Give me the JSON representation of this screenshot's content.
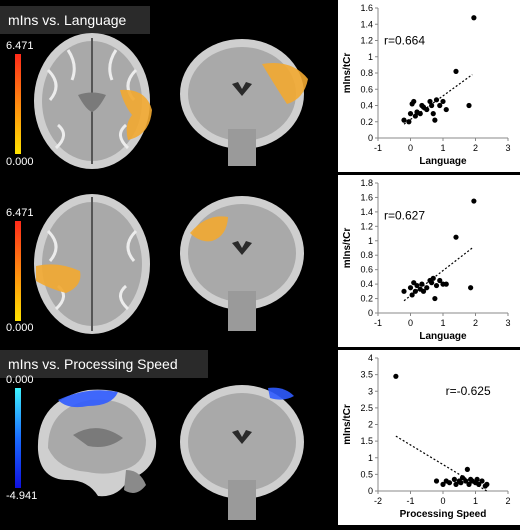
{
  "panels": [
    {
      "title": "mIns vs. Language",
      "colorbar": {
        "max": "6.471",
        "min": "0.000",
        "top_color": "#ff2a1a",
        "bottom_color": "#ffe300"
      },
      "chart_data": {
        "type": "scatter",
        "annotation": "r=0.664",
        "xlabel": "Language",
        "ylabel": "mIns/tCr",
        "xlim": [
          -1,
          3
        ],
        "ylim": [
          0,
          1.6
        ],
        "xticks": [
          "-1",
          "0",
          "1",
          "2",
          "3"
        ],
        "yticks": [
          "0",
          "0.2",
          "0.4",
          "0.6",
          "0.8",
          "1",
          "1.2",
          "1.4",
          "1.6"
        ],
        "points": [
          [
            -0.2,
            0.22
          ],
          [
            -0.05,
            0.2
          ],
          [
            0.0,
            0.3
          ],
          [
            0.05,
            0.42
          ],
          [
            0.1,
            0.45
          ],
          [
            0.15,
            0.27
          ],
          [
            0.2,
            0.32
          ],
          [
            0.3,
            0.3
          ],
          [
            0.35,
            0.4
          ],
          [
            0.4,
            0.38
          ],
          [
            0.5,
            0.35
          ],
          [
            0.6,
            0.45
          ],
          [
            0.65,
            0.4
          ],
          [
            0.7,
            0.3
          ],
          [
            0.75,
            0.22
          ],
          [
            0.8,
            0.47
          ],
          [
            0.9,
            0.4
          ],
          [
            1.0,
            0.45
          ],
          [
            1.1,
            0.35
          ],
          [
            1.4,
            0.82
          ],
          [
            1.8,
            0.4
          ],
          [
            1.95,
            1.48
          ]
        ],
        "trend": [
          [
            -0.2,
            0.17
          ],
          [
            1.9,
            0.78
          ]
        ]
      }
    },
    {
      "title": "",
      "colorbar": {
        "max": "6.471",
        "min": "0.000",
        "top_color": "#ff2a1a",
        "bottom_color": "#ffe300"
      },
      "chart_data": {
        "type": "scatter",
        "annotation": "r=0.627",
        "xlabel": "Language",
        "ylabel": "mIns/tCr",
        "xlim": [
          -1,
          3
        ],
        "ylim": [
          0,
          1.8
        ],
        "xticks": [
          "-1",
          "0",
          "1",
          "2",
          "3"
        ],
        "yticks": [
          "0",
          "0.2",
          "0.4",
          "0.6",
          "0.8",
          "1",
          "1.2",
          "1.4",
          "1.6",
          "1.8"
        ],
        "points": [
          [
            -0.2,
            0.3
          ],
          [
            0.0,
            0.35
          ],
          [
            0.05,
            0.25
          ],
          [
            0.1,
            0.42
          ],
          [
            0.15,
            0.3
          ],
          [
            0.2,
            0.38
          ],
          [
            0.3,
            0.33
          ],
          [
            0.35,
            0.4
          ],
          [
            0.4,
            0.3
          ],
          [
            0.5,
            0.35
          ],
          [
            0.6,
            0.45
          ],
          [
            0.65,
            0.42
          ],
          [
            0.7,
            0.48
          ],
          [
            0.75,
            0.2
          ],
          [
            0.8,
            0.38
          ],
          [
            0.9,
            0.45
          ],
          [
            1.0,
            0.4
          ],
          [
            1.1,
            0.4
          ],
          [
            1.4,
            1.05
          ],
          [
            1.85,
            0.35
          ],
          [
            1.95,
            1.55
          ]
        ],
        "trend": [
          [
            -0.2,
            0.17
          ],
          [
            1.9,
            0.9
          ]
        ]
      }
    },
    {
      "title": "mIns vs. Processing Speed",
      "colorbar": {
        "max": "0.000",
        "min": "-4.941",
        "top_color": "#3ff4ff",
        "bottom_color": "#1010e0"
      },
      "chart_data": {
        "type": "scatter",
        "annotation": "r=-0.625",
        "xlabel": "Processing Speed",
        "ylabel": "mIns/tCr",
        "xlim": [
          -2,
          2
        ],
        "ylim": [
          0,
          4
        ],
        "xticks": [
          "-2",
          "-1",
          "0",
          "1",
          "2"
        ],
        "yticks": [
          "0",
          "0.5",
          "1",
          "1.5",
          "2",
          "2.5",
          "3",
          "3.5",
          "4"
        ],
        "points": [
          [
            -1.45,
            3.45
          ],
          [
            -0.2,
            0.3
          ],
          [
            0.0,
            0.2
          ],
          [
            0.1,
            0.3
          ],
          [
            0.2,
            0.25
          ],
          [
            0.35,
            0.35
          ],
          [
            0.4,
            0.2
          ],
          [
            0.5,
            0.3
          ],
          [
            0.55,
            0.25
          ],
          [
            0.6,
            0.4
          ],
          [
            0.7,
            0.3
          ],
          [
            0.75,
            0.65
          ],
          [
            0.8,
            0.2
          ],
          [
            0.85,
            0.35
          ],
          [
            0.9,
            0.3
          ],
          [
            1.0,
            0.25
          ],
          [
            1.05,
            0.35
          ],
          [
            1.1,
            0.2
          ],
          [
            1.2,
            0.3
          ],
          [
            1.3,
            0.15
          ],
          [
            1.35,
            0.2
          ]
        ],
        "trend": [
          [
            -1.45,
            1.65
          ],
          [
            1.35,
            0.0
          ]
        ]
      }
    }
  ]
}
